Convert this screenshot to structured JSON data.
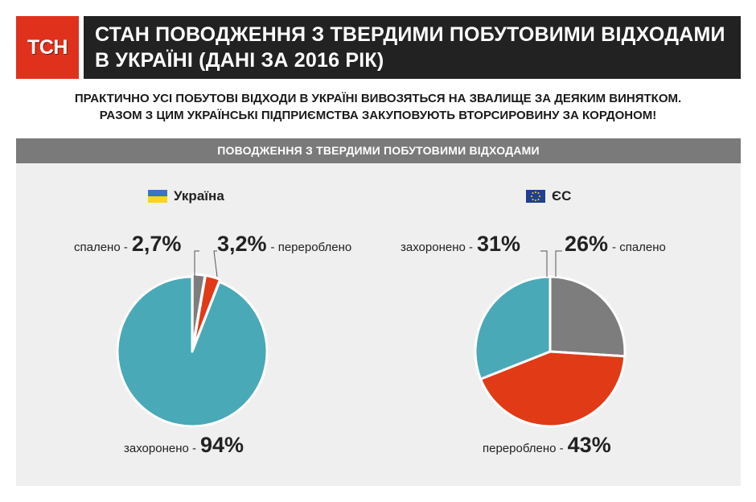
{
  "logo": {
    "text": "ТСН"
  },
  "header": {
    "title_line1": "СТАН ПОВОДЖЕННЯ З ТВЕРДИМИ ПОБУТОВИМИ ВІДХОДАМИ",
    "title_line2": "В УКРАЇНІ (ДАНІ ЗА 2016 РІК)"
  },
  "intro": {
    "line1": "ПРАКТИЧНО УСІ ПОБУТОВІ ВІДХОДИ В УКРАЇНІ ВИВОЗЯТЬСЯ НА ЗВАЛИЩЕ ЗА ДЕЯКИМ ВИНЯТКОМ.",
    "line2": "РАЗОМ З ЦИМ УКРАЇНСЬКІ ПІДПРИЄМСТВА ЗАКУПОВУЮТЬ ВТОРСИРОВИНУ ЗА КОРДОНОМ!"
  },
  "panel": {
    "title": "ПОВОДЖЕННЯ З ТВЕРДИМИ ПОБУТОВИМИ ВІДХОДАМИ"
  },
  "colors": {
    "grey": "#7d7d7d",
    "red": "#e03a17",
    "teal": "#4aa9b6",
    "ua_blue": "#3a75c4",
    "ua_yellow": "#f9d616",
    "eu_blue": "#1f3f8f"
  },
  "chart_data": [
    {
      "type": "pie",
      "title": "Україна",
      "legend_icon": "ukraine-flag-icon",
      "slices": [
        {
          "label": "спалено",
          "value": 2.7,
          "display": "2,7%",
          "color": "#7d7d7d"
        },
        {
          "label": "перероблено",
          "value": 3.2,
          "display": "3,2%",
          "color": "#e03a17"
        },
        {
          "label": "захоронено",
          "value": 94,
          "display": "94%",
          "color": "#4aa9b6"
        }
      ]
    },
    {
      "type": "pie",
      "title": "ЄС",
      "legend_icon": "eu-flag-icon",
      "slices": [
        {
          "label": "спалено",
          "value": 26,
          "display": "26%",
          "color": "#7d7d7d"
        },
        {
          "label": "перероблено",
          "value": 43,
          "display": "43%",
          "color": "#e03a17"
        },
        {
          "label": "захоронено",
          "value": 31,
          "display": "31%",
          "color": "#4aa9b6"
        }
      ]
    }
  ]
}
